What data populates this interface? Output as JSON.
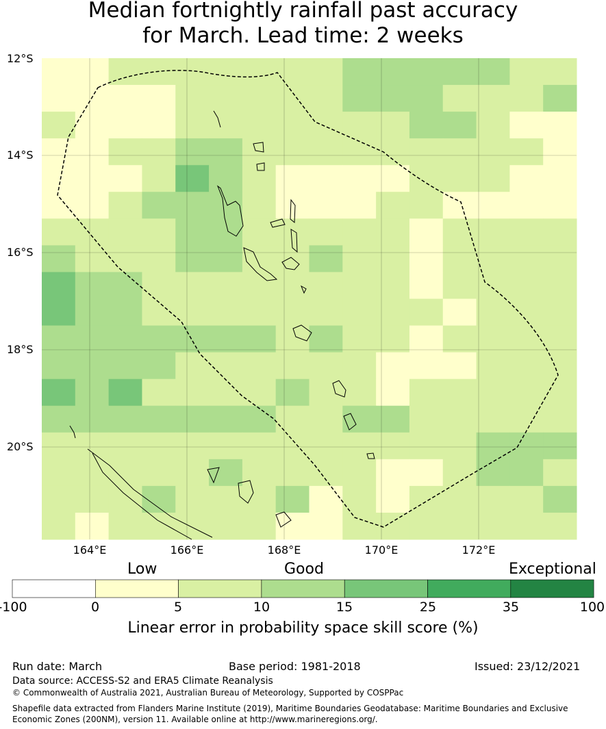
{
  "title_line1": "Median fortnightly rainfall past accuracy",
  "title_line2": "for March. Lead time: 2 weeks",
  "lat_labels": [
    "12°S",
    "14°S",
    "16°S",
    "18°S",
    "20°S"
  ],
  "lon_labels": [
    "164°E",
    "166°E",
    "168°E",
    "170°E",
    "172°E"
  ],
  "categories": {
    "low": "Low",
    "good": "Good",
    "exceptional": "Exceptional"
  },
  "colorbar": {
    "ticks": [
      "-100",
      "0",
      "5",
      "10",
      "15",
      "25",
      "35",
      "100"
    ],
    "colors": [
      "#ffffff",
      "#ffffcc",
      "#d9f0a3",
      "#addd8e",
      "#78c679",
      "#41ab5d",
      "#238443"
    ],
    "label": "Linear error in probability space skill score (%)"
  },
  "footer": {
    "run_date": "Run date: March",
    "base_period": "Base period: 1981-2018",
    "issued": "Issued: 23/12/2021",
    "data_source": "Data source: ACCESS-S2 and ERA5 Climate Reanalysis",
    "copyright": "© Commonwealth of Australia 2021, Australian Bureau of Meteorology, Supported by COSPPac",
    "shapefile": "Shapefile data extracted from Flanders Marine Institute (2019), Maritime Boundaries Geodatabase: Maritime Boundaries and Exclusive Economic Zones (200NM), version 11. Available online at http://www.marineregions.org/."
  }
}
